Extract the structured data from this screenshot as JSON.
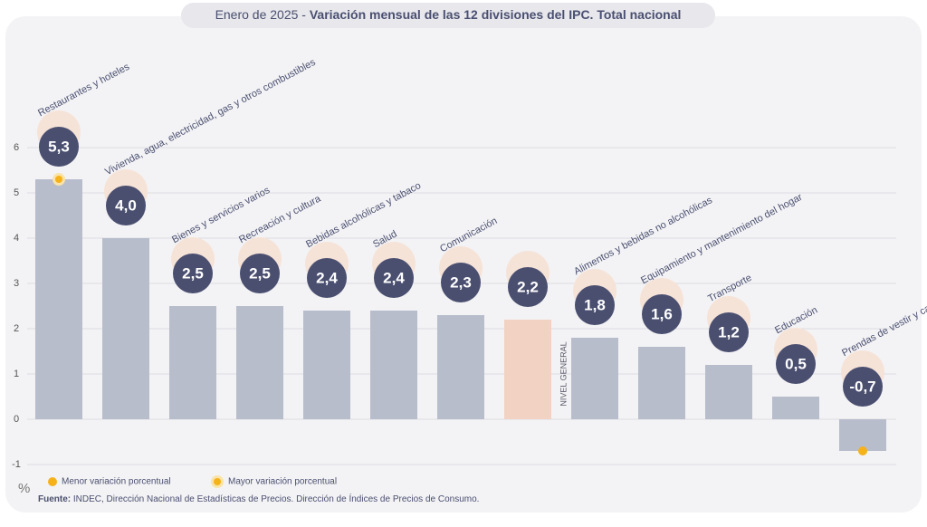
{
  "chart_data": {
    "type": "bar",
    "title_prefix": "Enero de 2025 -",
    "title": "Variación mensual de las 12 divisiones del IPC. Total nacional",
    "y_label": "%",
    "categories": [
      "Restaurantes y hoteles",
      "Vivienda, agua, electricidad, gas y otros combustibles",
      "Bienes y servicios varios",
      "Recreación y cultura",
      "Bebidas alcohólicas y tabaco",
      "Salud",
      "Comunicación",
      "NIVEL GENERAL",
      "Alimentos y bebidas no alcohólicas",
      "Equipamiento y mantenimiento del hogar",
      "Transporte",
      "Educación",
      "Prendas de vestir y calzado"
    ],
    "values": [
      5.3,
      4.0,
      2.5,
      2.5,
      2.4,
      2.4,
      2.3,
      2.2,
      1.8,
      1.6,
      1.2,
      0.5,
      -0.7
    ],
    "value_labels": [
      "5,3",
      "4,0",
      "2,5",
      "2,5",
      "2,4",
      "2,4",
      "2,3",
      "2,2",
      "1,8",
      "1,6",
      "1,2",
      "0,5",
      "-0,7"
    ],
    "colors": [
      "#b8bdcc",
      "#b8bdcc",
      "#b8bdcc",
      "#b8bdcc",
      "#b8bdcc",
      "#b8bdcc",
      "#b8bdcc",
      "#f2d2c2",
      "#b8bdcc",
      "#b8bdcc",
      "#b8bdcc",
      "#b8bdcc",
      "#b8bdcc"
    ],
    "badge_color": "#4a4f70",
    "highlight_color": "#f5b21b",
    "ylim": [
      -1,
      6
    ],
    "yticks": [
      6,
      5,
      4,
      3,
      2,
      1,
      0,
      -1
    ],
    "grid": true,
    "legend": [
      "Menor variación porcentual",
      "Mayor variación porcentual"
    ],
    "source_label": "Fuente:",
    "source": "INDEC, Dirección Nacional de Estadísticas de Precios. Dirección de Índices de Precios de Consumo."
  }
}
